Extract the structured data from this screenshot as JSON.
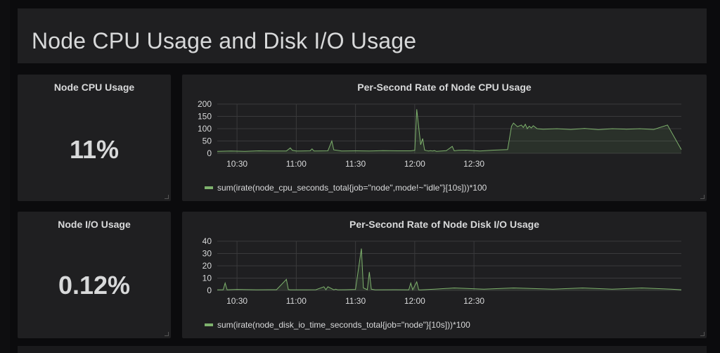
{
  "row": {
    "title": "Node CPU Usage and Disk I/O Usage"
  },
  "stats": [
    {
      "title": "Node CPU Usage",
      "value": "11%"
    },
    {
      "title": "Node I/O Usage",
      "value": "0.12%"
    }
  ],
  "graphs": [
    {
      "title": "Per-Second Rate of Node CPU Usage",
      "legend": "sum(irate(node_cpu_seconds_total{job=\"node\",mode!~\"idle\"}[10s]))*100"
    },
    {
      "title": "Per-Second Rate of Node Disk I/O Usage",
      "legend": "sum(irate(node_disk_io_time_seconds_total{job=\"node\"}[10s]))*100"
    }
  ],
  "colors": {
    "series": "#7eb26d",
    "panel": "#1f1f21",
    "background": "#0b0b0d",
    "text": "#d8d9da"
  },
  "chart_data": [
    {
      "type": "area",
      "title": "Per-Second Rate of Node CPU Usage",
      "x_ticks": [
        "10:30",
        "11:00",
        "11:30",
        "12:00",
        "12:30"
      ],
      "y_ticks": [
        0,
        50,
        100,
        150,
        200
      ],
      "ylim": [
        0,
        200
      ],
      "grid": true,
      "legend_position": "bottom-left",
      "series": [
        {
          "name": "sum(irate(node_cpu_seconds_total{job=\"node\",mode!~\"idle\"}[10s]))*100",
          "x": [
            0,
            7,
            14,
            21,
            28,
            35,
            37,
            38,
            40,
            42,
            47,
            48,
            49,
            56,
            58,
            59,
            63,
            70,
            77,
            84,
            91,
            98,
            100,
            101,
            103,
            104,
            105,
            106,
            107,
            108,
            109,
            110,
            111,
            116,
            119,
            120,
            122,
            126,
            133,
            140,
            147,
            149,
            150,
            152,
            154,
            155,
            156,
            157,
            158,
            159,
            160,
            162,
            165,
            172,
            179,
            186,
            193,
            200,
            207,
            214,
            221,
            228,
            235
          ],
          "values": [
            8,
            9,
            8,
            10,
            9,
            9,
            22,
            12,
            9,
            9,
            10,
            18,
            9,
            10,
            50,
            14,
            9,
            10,
            9,
            11,
            10,
            10,
            12,
            179,
            35,
            60,
            13,
            11,
            9,
            11,
            9,
            11,
            8,
            11,
            28,
            10,
            12,
            13,
            9,
            13,
            15,
            110,
            123,
            108,
            115,
            105,
            118,
            100,
            110,
            103,
            112,
            100,
            98,
            100,
            97,
            101,
            96,
            100,
            98,
            100,
            97,
            115,
            15
          ]
        }
      ]
    },
    {
      "type": "area",
      "title": "Per-Second Rate of Node Disk I/O Usage",
      "x_ticks": [
        "10:30",
        "11:00",
        "11:30",
        "12:00",
        "12:30"
      ],
      "y_ticks": [
        0,
        10,
        20,
        30,
        40
      ],
      "ylim": [
        0,
        40
      ],
      "grid": true,
      "legend_position": "bottom-left",
      "series": [
        {
          "name": "sum(irate(node_disk_io_time_seconds_total{job=\"node\"}[10s]))*100",
          "x": [
            0,
            3,
            4,
            5,
            10,
            20,
            30,
            35,
            36,
            37,
            45,
            50,
            54,
            55,
            56,
            59,
            60,
            61,
            65,
            70,
            73,
            74,
            76,
            77,
            78,
            80,
            90,
            97,
            98,
            99,
            101,
            102,
            103,
            110,
            120,
            135,
            150,
            170,
            185,
            200,
            215,
            230,
            235
          ],
          "values": [
            0.5,
            0.5,
            6,
            0.5,
            0.8,
            0.5,
            0.6,
            9,
            0.7,
            0.5,
            0.5,
            0.6,
            3,
            0.6,
            3,
            0.5,
            1,
            0.5,
            0.6,
            0.8,
            34,
            2,
            0.6,
            15,
            1,
            0.5,
            0.6,
            0.5,
            6,
            0.5,
            7,
            0.5,
            0.4,
            1,
            2,
            1,
            2,
            1,
            2,
            1,
            2,
            1,
            0.5
          ]
        }
      ]
    }
  ]
}
